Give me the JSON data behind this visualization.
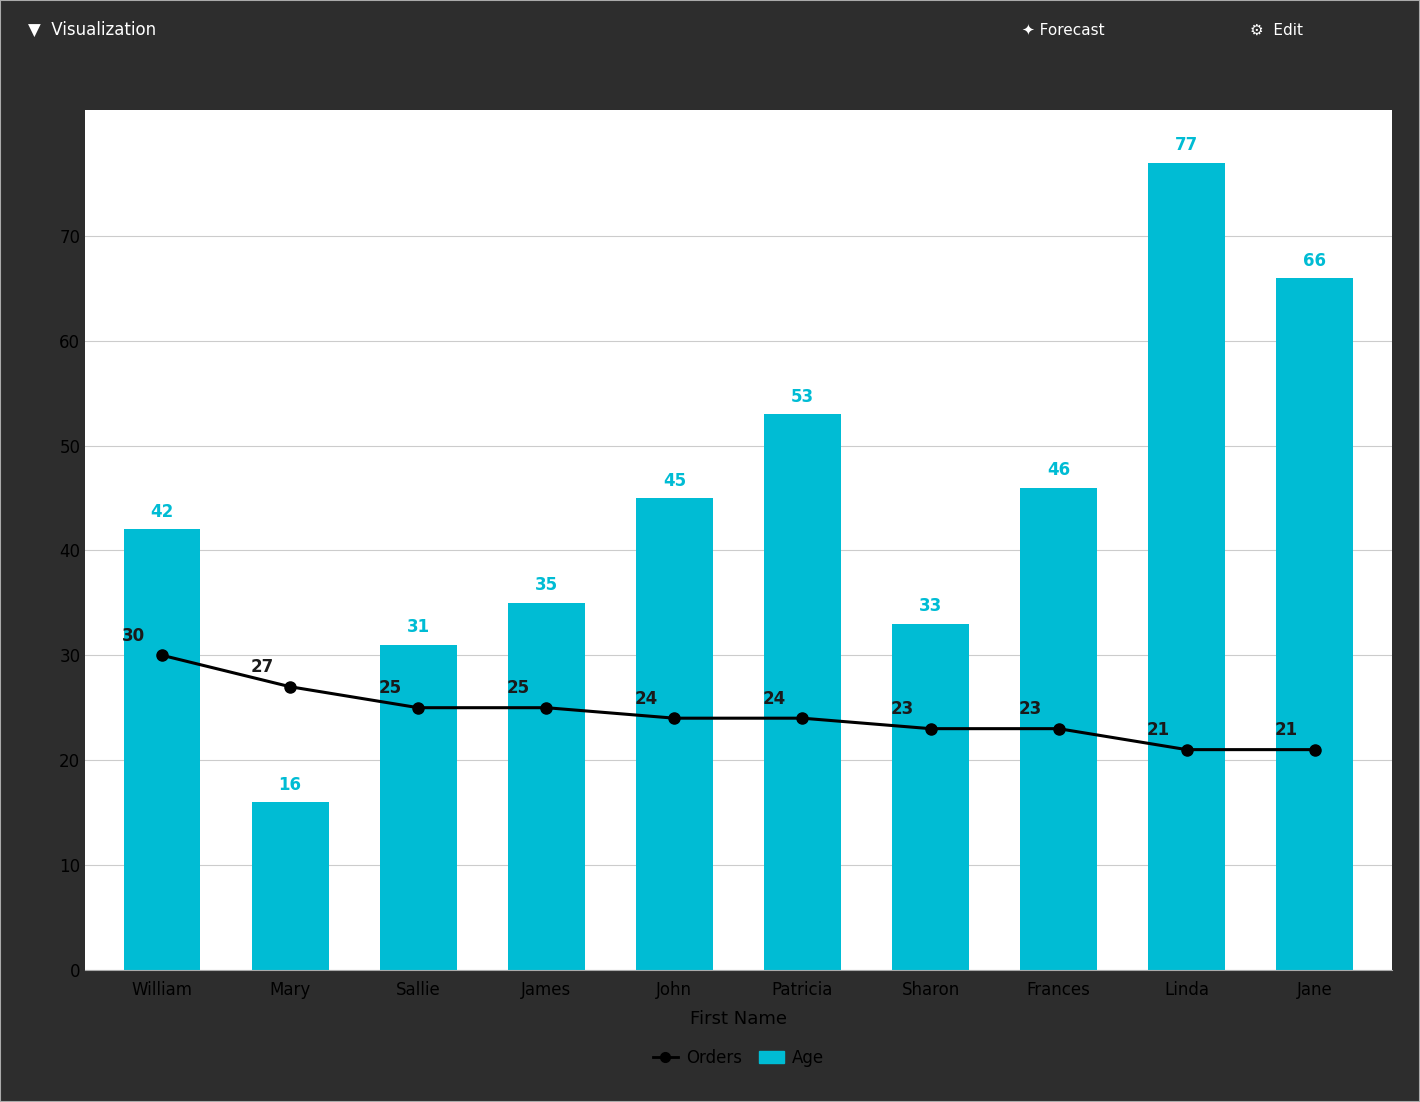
{
  "categories": [
    "William",
    "Mary",
    "Sallie",
    "James",
    "John",
    "Patricia",
    "Sharon",
    "Frances",
    "Linda",
    "Jane"
  ],
  "age_values": [
    42,
    16,
    31,
    35,
    45,
    53,
    33,
    46,
    77,
    66
  ],
  "orders_values": [
    30,
    27,
    25,
    25,
    24,
    24,
    23,
    23,
    21,
    21
  ],
  "bar_color": "#00BCD4",
  "line_color": "#000000",
  "marker_color": "#000000",
  "age_label_color": "#00BCD4",
  "orders_label_color": "#1a1a1a",
  "background_color": "#ffffff",
  "outer_background": "#2d2d2d",
  "xlabel": "First Name",
  "ylabel": "",
  "ylim": [
    0,
    82
  ],
  "yticks": [
    0,
    10,
    20,
    30,
    40,
    50,
    60,
    70
  ],
  "grid_color": "#cccccc",
  "title_bar_color": "#2d2d2d",
  "title_bar_height": 0.06,
  "legend_orders_label": "Orders",
  "legend_age_label": "Age",
  "xlabel_fontsize": 13,
  "tick_fontsize": 12,
  "label_fontsize": 12,
  "legend_fontsize": 12
}
